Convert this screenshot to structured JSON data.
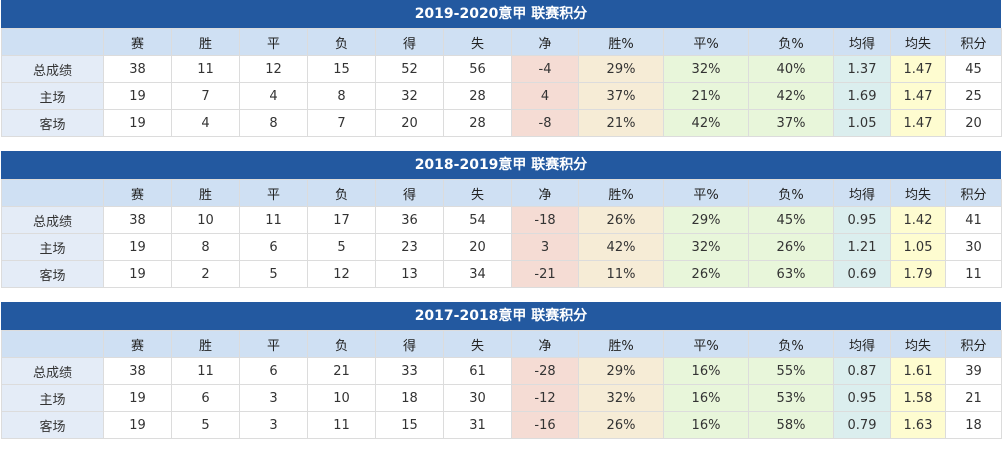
{
  "headers": [
    "",
    "赛",
    "胜",
    "平",
    "负",
    "得",
    "失",
    "净",
    "胜%",
    "平%",
    "负%",
    "均得",
    "均失",
    "积分"
  ],
  "colors": {
    "title_bar": "#2359a0",
    "header": "#cfe0f3",
    "win_pct": "#f5dcd4",
    "draw_pct": "#f6ecd6",
    "loss_pct": "#e8f6da",
    "avg_against": "#dbeeee",
    "points": "#fefcd0"
  },
  "tables": [
    {
      "title": "2019-2020意甲 联赛积分",
      "rows": [
        [
          "总成绩",
          "38",
          "11",
          "12",
          "15",
          "52",
          "56",
          "-4",
          "29%",
          "32%",
          "40%",
          "1.37",
          "1.47",
          "45"
        ],
        [
          "主场",
          "19",
          "7",
          "4",
          "8",
          "32",
          "28",
          "4",
          "37%",
          "21%",
          "42%",
          "1.69",
          "1.47",
          "25"
        ],
        [
          "客场",
          "19",
          "4",
          "8",
          "7",
          "20",
          "28",
          "-8",
          "21%",
          "42%",
          "37%",
          "1.05",
          "1.47",
          "20"
        ]
      ]
    },
    {
      "title": "2018-2019意甲 联赛积分",
      "rows": [
        [
          "总成绩",
          "38",
          "10",
          "11",
          "17",
          "36",
          "54",
          "-18",
          "26%",
          "29%",
          "45%",
          "0.95",
          "1.42",
          "41"
        ],
        [
          "主场",
          "19",
          "8",
          "6",
          "5",
          "23",
          "20",
          "3",
          "42%",
          "32%",
          "26%",
          "1.21",
          "1.05",
          "30"
        ],
        [
          "客场",
          "19",
          "2",
          "5",
          "12",
          "13",
          "34",
          "-21",
          "11%",
          "26%",
          "63%",
          "0.69",
          "1.79",
          "11"
        ]
      ]
    },
    {
      "title": "2017-2018意甲 联赛积分",
      "rows": [
        [
          "总成绩",
          "38",
          "11",
          "6",
          "21",
          "33",
          "61",
          "-28",
          "29%",
          "16%",
          "55%",
          "0.87",
          "1.61",
          "39"
        ],
        [
          "主场",
          "19",
          "6",
          "3",
          "10",
          "18",
          "30",
          "-12",
          "32%",
          "16%",
          "53%",
          "0.95",
          "1.58",
          "21"
        ],
        [
          "客场",
          "19",
          "5",
          "3",
          "11",
          "15",
          "31",
          "-16",
          "26%",
          "16%",
          "58%",
          "0.79",
          "1.63",
          "18"
        ]
      ]
    }
  ]
}
